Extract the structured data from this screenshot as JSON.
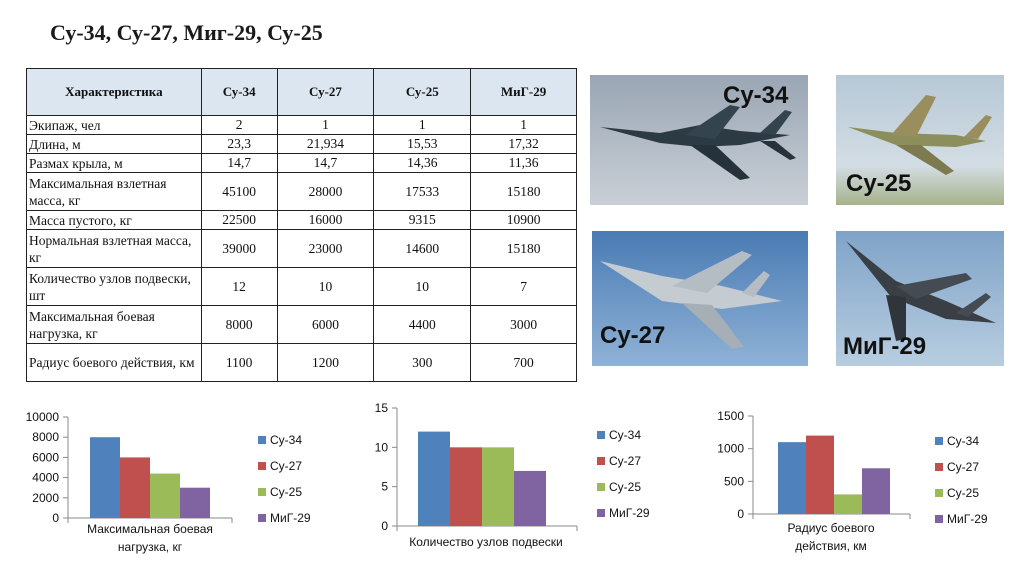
{
  "title": "Су-34, Су-27, Миг-29, Су-25",
  "table": {
    "headers": [
      "Характеристика",
      "Су-34",
      "Су-27",
      "Су-25",
      "МиГ-29"
    ],
    "rows": [
      {
        "label": "Экипаж, чел",
        "values": [
          "2",
          "1",
          "1",
          "1"
        ]
      },
      {
        "label": "Длина, м",
        "values": [
          "23,3",
          "21,934",
          "15,53",
          "17,32"
        ]
      },
      {
        "label": "Размах крыла, м",
        "values": [
          "14,7",
          "14,7",
          "14,36",
          "11,36"
        ]
      },
      {
        "label": "Максимальная взлетная масса, кг",
        "values": [
          "45100",
          "28000",
          "17533",
          "15180"
        ]
      },
      {
        "label": "Масса пустого, кг",
        "values": [
          "22500",
          "16000",
          "9315",
          "10900"
        ]
      },
      {
        "label": "Нормальная взлетная масса, кг",
        "values": [
          "39000",
          "23000",
          "14600",
          "15180"
        ]
      },
      {
        "label": "Количество узлов подвески, шт",
        "values": [
          "12",
          "10",
          "10",
          "7"
        ]
      },
      {
        "label": "Максимальная боевая нагрузка, кг",
        "values": [
          "8000",
          "6000",
          "4400",
          "3000"
        ]
      },
      {
        "label": "Радиус боевого действия, км",
        "values": [
          "1100",
          "1200",
          "300",
          "700"
        ]
      }
    ]
  },
  "photos": {
    "su34": {
      "label": "Су-34"
    },
    "su25": {
      "label": "Су-25"
    },
    "su27": {
      "label": "Су-27"
    },
    "mig29": {
      "label": "МиГ-29"
    }
  },
  "colors": {
    "Су-34": "#4f81bd",
    "Су-27": "#c0504d",
    "Су-25": "#9bbb59",
    "МиГ-29": "#8064a2"
  },
  "chart_data": [
    {
      "type": "bar",
      "categories": [
        ""
      ],
      "series": [
        {
          "name": "Су-34",
          "values": [
            8000
          ]
        },
        {
          "name": "Су-27",
          "values": [
            6000
          ]
        },
        {
          "name": "Су-25",
          "values": [
            4400
          ]
        },
        {
          "name": "МиГ-29",
          "values": [
            3000
          ]
        }
      ],
      "xlabel": "Максимальная боевая нагрузка, кг",
      "ylim": [
        0,
        10000
      ],
      "yticks": [
        0,
        2000,
        4000,
        6000,
        8000,
        10000
      ],
      "grid": false,
      "legend": "right"
    },
    {
      "type": "bar",
      "categories": [
        ""
      ],
      "series": [
        {
          "name": "Су-34",
          "values": [
            12
          ]
        },
        {
          "name": "Су-27",
          "values": [
            10
          ]
        },
        {
          "name": "Су-25",
          "values": [
            10
          ]
        },
        {
          "name": "МиГ-29",
          "values": [
            7
          ]
        }
      ],
      "xlabel": "Количество узлов подвески",
      "ylim": [
        0,
        15
      ],
      "yticks": [
        0,
        5,
        10,
        15
      ],
      "grid": false,
      "legend": "right"
    },
    {
      "type": "bar",
      "categories": [
        ""
      ],
      "series": [
        {
          "name": "Су-34",
          "values": [
            1100
          ]
        },
        {
          "name": "Су-27",
          "values": [
            1200
          ]
        },
        {
          "name": "Су-25",
          "values": [
            300
          ]
        },
        {
          "name": "МиГ-29",
          "values": [
            700
          ]
        }
      ],
      "xlabel": "Радиус боевого действия, км",
      "ylim": [
        0,
        1500
      ],
      "yticks": [
        0,
        500,
        1000,
        1500
      ],
      "grid": false,
      "legend": "right"
    }
  ]
}
